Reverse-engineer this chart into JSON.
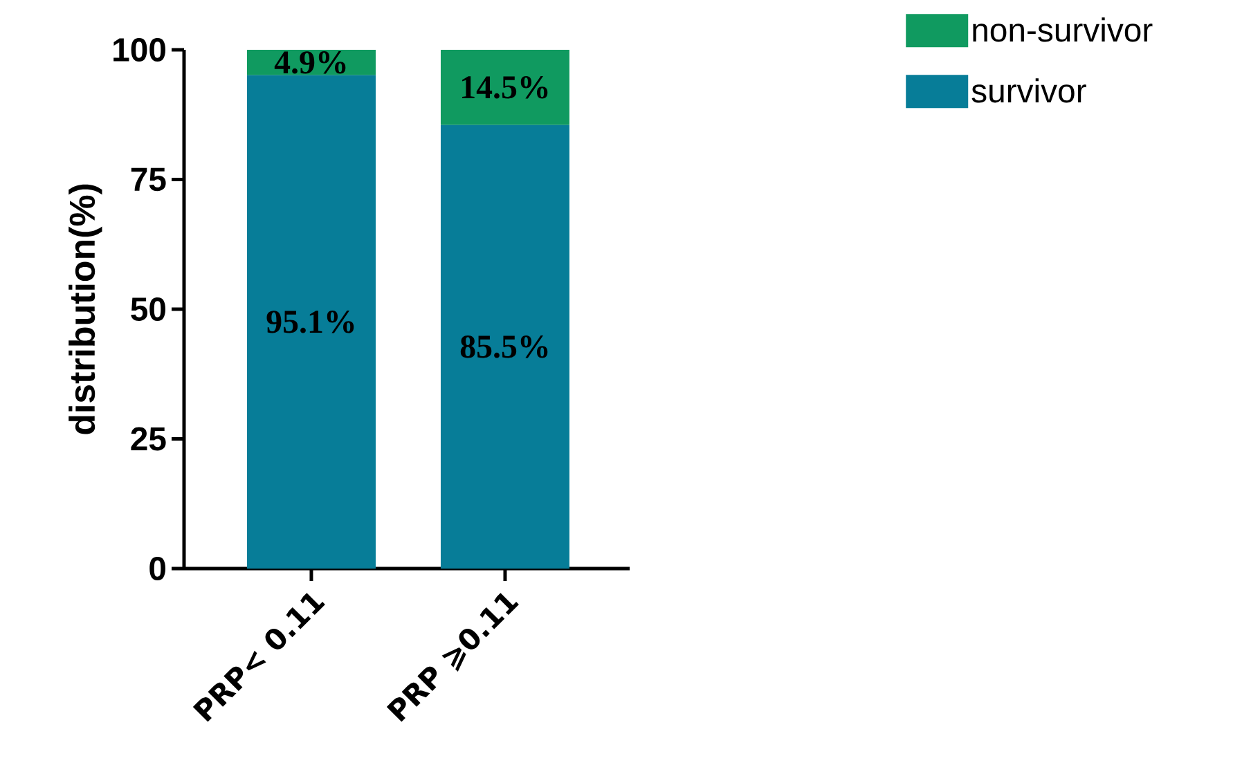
{
  "chart_data": {
    "type": "bar",
    "stacked": true,
    "ylabel": "distribution(%)",
    "categories": [
      "PRP< 0.11",
      "PRP ⩾0.11"
    ],
    "series": [
      {
        "name": "survivor",
        "color": "#077d98",
        "values": [
          95.1,
          85.5
        ],
        "value_labels": [
          "95.1%",
          "85.5%"
        ]
      },
      {
        "name": "non-survivor",
        "color": "#109a60",
        "values": [
          4.9,
          14.5
        ],
        "value_labels": [
          "4.9%",
          "14.5%"
        ]
      }
    ],
    "ylim": [
      0,
      100
    ],
    "yticks": [
      0,
      25,
      50,
      75,
      100
    ],
    "legend": "top right"
  }
}
